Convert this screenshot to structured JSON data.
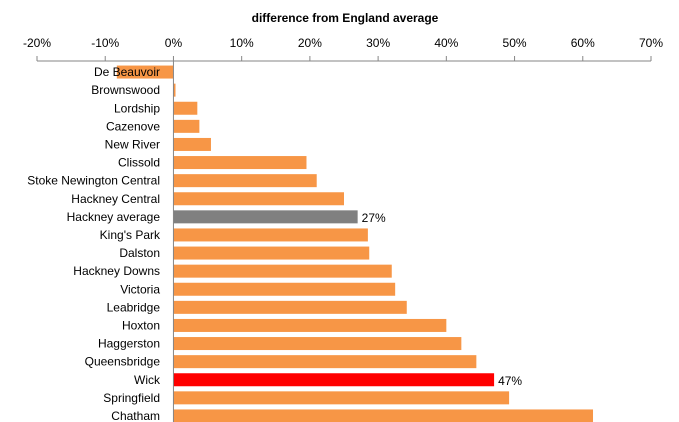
{
  "chart_data": {
    "type": "bar",
    "orientation": "horizontal",
    "title": "difference from England  average",
    "xlabel": "",
    "ylabel": "",
    "xlim": [
      -20,
      70
    ],
    "x_axis_position": "top",
    "x_ticks": [
      -20,
      -10,
      0,
      10,
      20,
      30,
      40,
      50,
      60,
      70
    ],
    "x_tick_labels": [
      "-20%",
      "-10%",
      "0%",
      "10%",
      "20%",
      "30%",
      "40%",
      "50%",
      "60%",
      "70%"
    ],
    "grid": false,
    "legend": "none",
    "colors": {
      "default": "#F79646",
      "average": "#808080",
      "highlight": "#FF0000"
    },
    "categories": [
      "De Beauvoir",
      "Brownswood",
      "Lordship",
      "Cazenove",
      "New River",
      "Clissold",
      "Stoke Newington Central",
      "Hackney Central",
      "Hackney average",
      "King's Park",
      "Dalston",
      "Hackney Downs",
      "Victoria",
      "Leabridge",
      "Hoxton",
      "Haggerston",
      "Queensbridge",
      "Wick",
      "Springfield",
      "Chatham"
    ],
    "values": [
      -8.3,
      0.3,
      3.5,
      3.8,
      5.5,
      19.5,
      21,
      25,
      27,
      28.5,
      28.7,
      32,
      32.5,
      34.2,
      40,
      42.2,
      44.4,
      47,
      49.2,
      61.5
    ],
    "bar_colors": [
      "default",
      "default",
      "default",
      "default",
      "default",
      "default",
      "default",
      "default",
      "average",
      "default",
      "default",
      "default",
      "default",
      "default",
      "default",
      "default",
      "default",
      "highlight",
      "default",
      "default"
    ],
    "data_labels": [
      {
        "category": "Hackney average",
        "text": "27%"
      },
      {
        "category": "Wick",
        "text": "47%"
      }
    ]
  }
}
